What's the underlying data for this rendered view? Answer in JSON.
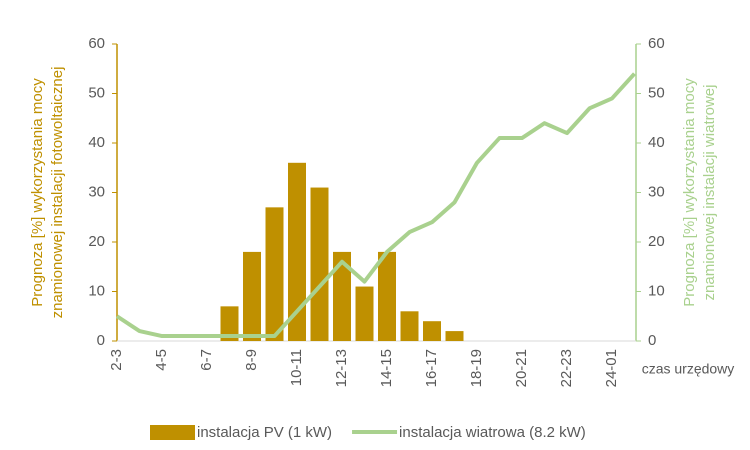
{
  "chart_data": {
    "type": "bar_line",
    "categories": [
      "2-3",
      null,
      "4-5",
      null,
      "6-7",
      null,
      "8-9",
      null,
      "10-11",
      null,
      "12-13",
      null,
      "14-15",
      null,
      "16-17",
      null,
      "18-19",
      null,
      "20-21",
      null,
      "22-23",
      null,
      "24-01",
      null
    ],
    "series": [
      {
        "name": "instalacja PV (1 kW)",
        "type": "bar",
        "axis": "y",
        "color": "#bf9000",
        "values": [
          0,
          0,
          0,
          0,
          0,
          7,
          18,
          27,
          36,
          31,
          18,
          11,
          18,
          6,
          4,
          2,
          0,
          0,
          0,
          0,
          0,
          0,
          0,
          0
        ]
      },
      {
        "name": "instalacja wiatrowa (8.2 kW)",
        "type": "line",
        "axis": "y2",
        "color": "#a9d18e",
        "values": [
          5,
          2,
          1,
          1,
          1,
          1,
          1,
          1,
          6,
          11,
          16,
          12,
          18,
          22,
          24,
          28,
          36,
          41,
          41,
          44,
          42,
          47,
          49,
          54
        ]
      }
    ],
    "xlabel": "czas urzędowy",
    "ylabel": [
      "Prognoza [%] wykorzystania mocy",
      "znamionowej instalacji fotowoltaicznej"
    ],
    "y2label": [
      "Prognoza  [%] wykorzystania mocy",
      "znamionowej instalacji wiatrowej"
    ],
    "ylim": [
      0,
      60
    ],
    "yticks": [
      0,
      10,
      20,
      30,
      40,
      50,
      60
    ],
    "y2lim": [
      0,
      60
    ],
    "y2ticks": [
      0,
      10,
      20,
      30,
      40,
      50,
      60
    ],
    "legend": "bottom"
  }
}
